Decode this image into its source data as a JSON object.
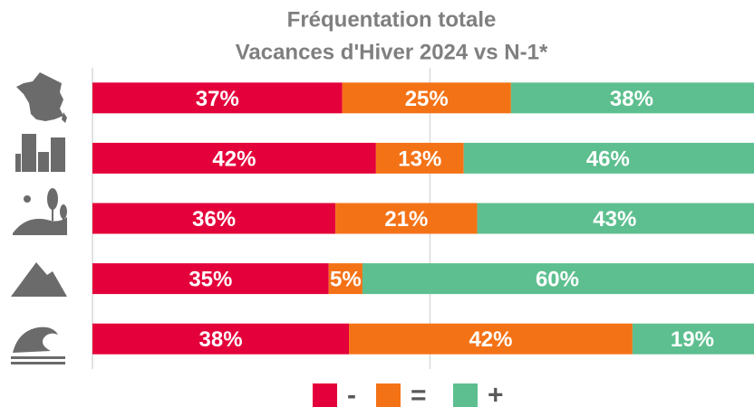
{
  "chart_data": {
    "type": "stacked-barh",
    "title": "Fréquentation totale",
    "subtitle": "Vacances d'Hiver 2024 vs N-1*",
    "categories": [
      null,
      null,
      null,
      null,
      null
    ],
    "series": [
      {
        "name": "-",
        "color": "#e4003a",
        "values": [
          37,
          42,
          36,
          35,
          38
        ],
        "value_labels": [
          "37%",
          "42%",
          "36%",
          "35%",
          "38%"
        ]
      },
      {
        "name": "=",
        "color": "#f47216",
        "values": [
          25,
          13,
          21,
          5,
          42
        ],
        "value_labels": [
          "25%",
          "13%",
          "21%",
          "5%",
          "42%"
        ]
      },
      {
        "name": "+",
        "color": "#5dbf8f",
        "values": [
          38,
          46,
          43,
          60,
          19
        ],
        "value_labels": [
          "38%",
          "46%",
          "43%",
          "60%",
          "19%"
        ]
      }
    ],
    "xlim": [
      0,
      98
    ],
    "xgrid": [
      0,
      50
    ],
    "legend": "bottom"
  }
}
